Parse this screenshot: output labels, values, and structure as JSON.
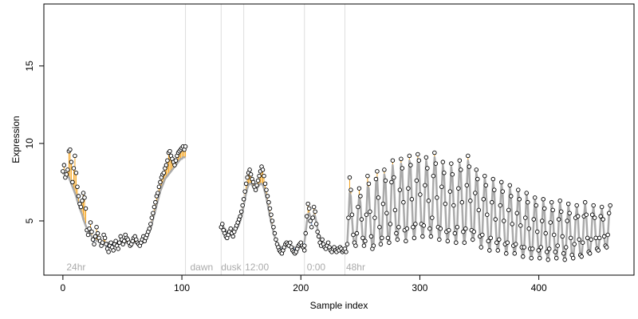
{
  "chart_data": {
    "type": "scatter",
    "title": "",
    "xlabel": "Sample index",
    "ylabel": "Expression",
    "xlim": [
      -16,
      480
    ],
    "ylim": [
      1.5,
      19.0
    ],
    "xticks": [
      0,
      100,
      200,
      300,
      400
    ],
    "yticks": [
      5,
      10,
      15
    ],
    "grid": false,
    "colors": {
      "points_fill": "#ffffff",
      "points_stroke": "#000000",
      "fit_line": "#aaaaaa",
      "residual_positive": "#f5a623",
      "residual_negative": "#7b9fd4",
      "region_separator": "#dddddd",
      "region_label": "#aaaaaa"
    },
    "region_boundaries": [
      103,
      133,
      152,
      203,
      237
    ],
    "region_labels": [
      {
        "x": 3,
        "label": "24hr"
      },
      {
        "x": 107,
        "label": "dawn"
      },
      {
        "x": 133,
        "label": "dusk"
      },
      {
        "x": 153,
        "label": "12:00"
      },
      {
        "x": 205,
        "label": "0:00"
      },
      {
        "x": 238,
        "label": "48hr"
      }
    ],
    "series": [
      {
        "kind": "observed",
        "segments": [
          {
            "x_start": 0,
            "x_end": 103,
            "y": [
              8.2,
              8.6,
              7.8,
              8.0,
              8.3,
              9.5,
              9.6,
              8.8,
              7.5,
              8.4,
              9.2,
              8.1,
              7.2,
              6.6,
              6.1,
              5.9,
              6.3,
              6.8,
              6.5,
              5.8,
              4.4,
              4.1,
              4.5,
              4.9,
              4.3,
              3.8,
              3.5,
              4.0,
              4.6,
              4.2,
              3.9,
              3.7,
              3.4,
              3.6,
              4.1,
              3.9,
              3.5,
              3.2,
              3.0,
              3.4,
              3.6,
              3.3,
              3.1,
              3.5,
              3.7,
              3.4,
              3.2,
              3.6,
              4.0,
              3.8,
              3.5,
              3.7,
              4.1,
              3.9,
              3.8,
              3.6,
              3.4,
              3.5,
              3.7,
              3.9,
              4.0,
              3.8,
              3.6,
              3.5,
              3.4,
              3.6,
              3.8,
              4.0,
              3.7,
              3.9,
              4.1,
              4.3,
              4.5,
              4.8,
              5.2,
              5.5,
              5.9,
              6.2,
              6.6,
              6.8,
              7.2,
              7.5,
              7.8,
              8.0,
              8.1,
              8.4,
              8.6,
              8.9,
              9.4,
              9.5,
              9.2,
              9.0,
              8.8,
              8.6,
              8.9,
              9.2,
              9.4,
              9.5,
              9.6,
              9.7,
              9.8,
              9.6,
              9.8
            ]
          },
          {
            "x_start": 133,
            "x_end": 203,
            "y": [
              4.6,
              4.8,
              4.4,
              4.2,
              4.0,
              3.9,
              4.1,
              4.3,
              4.5,
              4.2,
              4.0,
              4.3,
              4.5,
              4.7,
              4.9,
              5.1,
              5.3,
              5.6,
              6.0,
              6.4,
              6.9,
              7.4,
              7.8,
              8.1,
              8.3,
              8.0,
              7.7,
              7.5,
              7.2,
              7.0,
              7.3,
              7.6,
              7.9,
              8.2,
              8.5,
              8.3,
              7.9,
              7.4,
              7.0,
              6.6,
              6.2,
              5.8,
              5.4,
              5.0,
              4.6,
              4.2,
              3.8,
              3.5,
              3.3,
              3.1,
              3.0,
              2.9,
              3.1,
              3.3,
              3.5,
              3.6,
              3.5,
              3.4,
              3.6,
              3.3,
              3.1,
              3.0,
              2.9,
              3.0,
              3.2,
              3.4,
              3.5,
              3.6,
              3.4,
              3.3,
              3.1
            ]
          },
          {
            "x_start": 203,
            "x_end": 237,
            "y": [
              3.4,
              4.2,
              5.3,
              6.1,
              5.8,
              5.0,
              4.6,
              5.2,
              5.9,
              5.6,
              4.8,
              4.3,
              4.0,
              3.6,
              3.4,
              3.8,
              3.5,
              3.3,
              3.2,
              3.4,
              3.6,
              3.3,
              3.1,
              3.0,
              3.2,
              3.3,
              3.1,
              3.0,
              3.2,
              3.1,
              3.3,
              3.2,
              3.0,
              3.1,
              3.2
            ]
          },
          {
            "x_start": 238,
            "x_end": 460,
            "y": [
              3.0,
              3.5,
              5.2,
              7.8,
              7.0,
              5.4,
              4.1,
              3.6,
              3.4,
              4.2,
              5.9,
              7.1,
              6.6,
              5.1,
              3.9,
              3.4,
              3.7,
              5.4,
              7.9,
              7.4,
              5.6,
              4.0,
              3.2,
              3.4,
              5.2,
              7.7,
              8.2,
              6.5,
              4.6,
              3.5,
              3.9,
              6.1,
              8.3,
              7.6,
              5.5,
              3.9,
              3.6,
              4.8,
              7.5,
              8.9,
              7.8,
              5.7,
              4.2,
              3.8,
              4.6,
              7.0,
              9.0,
              8.4,
              6.2,
              4.4,
              3.7,
              4.5,
              7.1,
              9.2,
              8.6,
              6.4,
              4.6,
              3.9,
              4.8,
              7.6,
              9.3,
              8.9,
              6.7,
              4.8,
              4.0,
              4.7,
              7.3,
              9.1,
              8.4,
              6.3,
              4.5,
              4.0,
              5.2,
              7.9,
              9.4,
              8.7,
              6.5,
              4.6,
              3.8,
              4.5,
              7.2,
              8.8,
              8.1,
              6.1,
              4.3,
              3.7,
              4.4,
              6.9,
              8.7,
              8.0,
              6.0,
              4.2,
              3.6,
              4.6,
              7.1,
              8.9,
              8.3,
              6.2,
              4.3,
              3.6,
              4.5,
              7.3,
              9.2,
              8.5,
              6.3,
              4.4,
              3.8,
              4.3,
              6.8,
              8.3,
              7.7,
              5.7,
              4.0,
              3.3,
              4.1,
              6.4,
              7.9,
              7.3,
              5.4,
              3.7,
              3.1,
              3.9,
              6.2,
              7.7,
              7.0,
              5.1,
              3.6,
              3.1,
              3.8,
              6.0,
              7.5,
              6.9,
              5.0,
              3.5,
              2.9,
              3.6,
              5.7,
              7.3,
              6.6,
              4.8,
              3.4,
              2.9,
              3.5,
              5.5,
              7.0,
              6.4,
              4.7,
              3.3,
              2.7,
              3.3,
              5.2,
              6.8,
              6.2,
              4.5,
              3.2,
              2.6,
              3.2,
              5.1,
              6.5,
              6.0,
              4.3,
              3.1,
              2.6,
              3.3,
              5.0,
              6.4,
              5.8,
              4.2,
              3.0,
              2.5,
              3.2,
              4.9,
              6.2,
              5.7,
              4.1,
              3.0,
              2.6,
              3.4,
              5.1,
              6.3,
              5.6,
              4.0,
              2.9,
              2.5,
              3.3,
              5.0,
              6.1,
              5.5,
              3.9,
              2.8,
              2.6,
              3.5,
              5.2,
              6.0,
              5.3,
              3.8,
              2.8,
              2.7,
              3.6,
              5.3,
              6.2,
              5.4,
              3.9,
              3.0,
              2.9,
              3.8,
              5.4,
              6.0,
              5.2,
              3.9,
              3.2,
              3.1,
              3.9,
              5.3,
              5.9,
              5.1,
              4.0,
              3.4,
              3.3,
              4.1,
              5.5,
              6.0
            ]
          }
        ]
      },
      {
        "kind": "fitted",
        "segments": [
          {
            "x_start": 0,
            "x_end": 103,
            "y": [
              8.0,
              8.1,
              8.1,
              8.0,
              7.9,
              7.8,
              7.6,
              7.4,
              7.2,
              7.0,
              6.8,
              6.6,
              6.3,
              6.1,
              5.8,
              5.6,
              5.4,
              5.1,
              4.9,
              4.7,
              4.5,
              4.4,
              4.2,
              4.1,
              4.0,
              3.9,
              3.8,
              3.8,
              3.7,
              3.7,
              3.7,
              3.6,
              3.6,
              3.6,
              3.6,
              3.6,
              3.6,
              3.6,
              3.6,
              3.6,
              3.6,
              3.6,
              3.6,
              3.6,
              3.6,
              3.6,
              3.6,
              3.6,
              3.6,
              3.6,
              3.6,
              3.6,
              3.6,
              3.6,
              3.6,
              3.6,
              3.6,
              3.6,
              3.6,
              3.6,
              3.6,
              3.6,
              3.6,
              3.6,
              3.6,
              3.6,
              3.6,
              3.6,
              3.7,
              3.8,
              3.9,
              4.1,
              4.3,
              4.5,
              4.8,
              5.1,
              5.4,
              5.7,
              6.0,
              6.3,
              6.6,
              6.9,
              7.1,
              7.3,
              7.5,
              7.7,
              7.8,
              7.9,
              8.0,
              8.1,
              8.2,
              8.3,
              8.4,
              8.5,
              8.6,
              8.7,
              8.8,
              8.9,
              9.0,
              9.0,
              9.1,
              9.1,
              9.1
            ]
          },
          {
            "x_start": 133,
            "x_end": 203,
            "y": [
              4.8,
              4.7,
              4.6,
              4.5,
              4.4,
              4.3,
              4.3,
              4.3,
              4.3,
              4.3,
              4.3,
              4.3,
              4.4,
              4.5,
              4.6,
              4.8,
              5.0,
              5.3,
              5.6,
              6.0,
              6.4,
              6.8,
              7.1,
              7.3,
              7.4,
              7.4,
              7.3,
              7.2,
              7.1,
              7.1,
              7.1,
              7.2,
              7.3,
              7.4,
              7.4,
              7.3,
              7.1,
              6.8,
              6.5,
              6.1,
              5.7,
              5.3,
              4.9,
              4.6,
              4.3,
              4.0,
              3.8,
              3.6,
              3.5,
              3.4,
              3.3,
              3.3,
              3.3,
              3.3,
              3.4,
              3.4,
              3.4,
              3.4,
              3.4,
              3.3,
              3.3,
              3.3,
              3.3,
              3.3,
              3.3,
              3.3,
              3.3,
              3.3,
              3.3,
              3.3,
              3.3
            ]
          },
          {
            "x_start": 203,
            "x_end": 237,
            "y": [
              3.6,
              4.2,
              4.9,
              5.4,
              5.5,
              5.3,
              5.1,
              5.2,
              5.4,
              5.3,
              4.9,
              4.5,
              4.1,
              3.8,
              3.7,
              3.6,
              3.5,
              3.4,
              3.4,
              3.4,
              3.4,
              3.3,
              3.3,
              3.2,
              3.2,
              3.2,
              3.2,
              3.2,
              3.2,
              3.2,
              3.2,
              3.2,
              3.2,
              3.2,
              3.2
            ]
          },
          {
            "x_start": 238,
            "x_end": 460,
            "y": [
              3.2,
              3.6,
              5.0,
              6.8,
              6.6,
              5.2,
              4.0,
              3.5,
              3.5,
              4.3,
              5.7,
              6.6,
              6.2,
              4.9,
              3.8,
              3.4,
              3.8,
              5.4,
              7.2,
              7.1,
              5.5,
              4.0,
              3.2,
              3.5,
              5.3,
              7.4,
              7.8,
              6.3,
              4.5,
              3.4,
              3.9,
              6.0,
              8.0,
              7.6,
              5.6,
              3.9,
              3.5,
              4.8,
              7.2,
              8.6,
              7.7,
              5.7,
              4.1,
              3.7,
              4.6,
              6.9,
              8.7,
              8.3,
              6.2,
              4.4,
              3.7,
              4.5,
              7.0,
              8.9,
              8.5,
              6.4,
              4.5,
              3.8,
              4.7,
              7.3,
              9.0,
              8.7,
              6.6,
              4.7,
              3.9,
              4.6,
              7.1,
              8.9,
              8.3,
              6.3,
              4.5,
              3.9,
              5.0,
              7.6,
              9.1,
              8.6,
              6.5,
              4.6,
              3.8,
              4.4,
              7.0,
              8.6,
              8.0,
              6.1,
              4.3,
              3.6,
              4.3,
              6.7,
              8.5,
              7.9,
              6.0,
              4.2,
              3.5,
              4.5,
              6.9,
              8.7,
              8.2,
              6.2,
              4.3,
              3.5,
              4.4,
              7.1,
              8.9,
              8.4,
              6.3,
              4.4,
              3.7,
              4.2,
              6.6,
              8.1,
              7.6,
              5.7,
              4.0,
              3.2,
              4.0,
              6.3,
              7.8,
              7.2,
              5.4,
              3.7,
              3.0,
              3.8,
              6.1,
              7.6,
              6.9,
              5.1,
              3.6,
              3.0,
              3.7,
              5.9,
              7.4,
              6.8,
              5.0,
              3.5,
              2.8,
              3.5,
              5.6,
              7.2,
              6.5,
              4.8,
              3.3,
              2.8,
              3.4,
              5.4,
              6.9,
              6.3,
              4.6,
              3.2,
              2.6,
              3.2,
              5.1,
              6.7,
              6.1,
              4.4,
              3.1,
              2.5,
              3.1,
              5.0,
              6.4,
              5.9,
              4.3,
              3.0,
              2.5,
              3.2,
              4.9,
              6.3,
              5.7,
              4.1,
              2.9,
              2.4,
              3.1,
              4.8,
              6.1,
              5.6,
              4.0,
              2.9,
              2.5,
              3.3,
              5.0,
              6.2,
              5.5,
              3.9,
              2.8,
              2.4,
              3.2,
              4.9,
              6.0,
              5.4,
              3.8,
              2.7,
              2.5,
              3.4,
              5.1,
              5.9,
              5.2,
              3.7,
              2.7,
              2.6,
              3.5,
              5.2,
              6.1,
              5.3,
              3.8,
              2.9,
              2.8,
              3.7,
              5.3,
              5.9,
              5.1,
              3.8,
              3.1,
              3.0,
              3.8,
              5.2,
              5.8,
              5.0,
              3.9,
              3.3,
              3.2,
              4.0,
              5.4,
              5.9
            ]
          }
        ]
      }
    ]
  }
}
